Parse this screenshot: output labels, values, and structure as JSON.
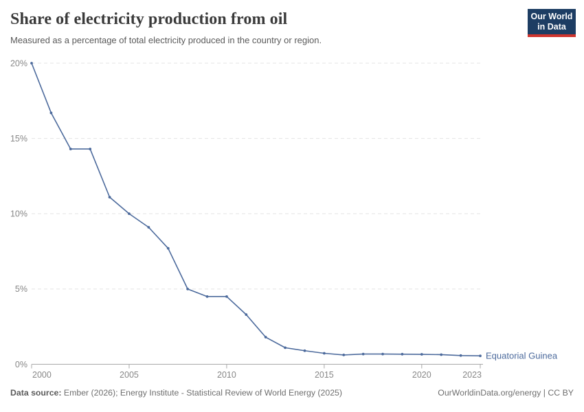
{
  "header": {
    "title": "Share of electricity production from oil",
    "subtitle": "Measured as a percentage of total electricity produced in the country or region.",
    "logo": {
      "line1": "Our World",
      "line2": "in Data"
    }
  },
  "chart_data": {
    "type": "line",
    "title": "Share of electricity production from oil",
    "xlabel": "",
    "ylabel": "",
    "x": [
      2000,
      2001,
      2002,
      2003,
      2004,
      2005,
      2006,
      2007,
      2008,
      2009,
      2010,
      2011,
      2012,
      2013,
      2014,
      2015,
      2016,
      2017,
      2018,
      2019,
      2020,
      2021,
      2022,
      2023
    ],
    "series": [
      {
        "name": "Equatorial Guinea",
        "values": [
          20.0,
          16.7,
          14.3,
          14.3,
          11.1,
          10.0,
          9.1,
          7.7,
          5.0,
          4.5,
          4.5,
          3.3,
          1.8,
          1.1,
          0.9,
          0.73,
          0.62,
          0.68,
          0.68,
          0.67,
          0.66,
          0.64,
          0.58,
          0.56
        ]
      }
    ],
    "entity_label": "Equatorial Guinea",
    "xlim": [
      2000,
      2023
    ],
    "ylim": [
      0,
      20
    ],
    "xticks": [
      {
        "value": 2000,
        "label": "2000"
      },
      {
        "value": 2005,
        "label": "2005"
      },
      {
        "value": 2010,
        "label": "2010"
      },
      {
        "value": 2015,
        "label": "2015"
      },
      {
        "value": 2020,
        "label": "2020"
      },
      {
        "value": 2023,
        "label": "2023"
      }
    ],
    "yticks": [
      {
        "value": 0,
        "label": "0%"
      },
      {
        "value": 5,
        "label": "5%"
      },
      {
        "value": 10,
        "label": "10%"
      },
      {
        "value": 15,
        "label": "15%"
      },
      {
        "value": 20,
        "label": "20%"
      }
    ],
    "grid": "horizontal-dashed",
    "legend_position": "right-of-line"
  },
  "footer": {
    "source_label": "Data source:",
    "source_text": " Ember (2026); Energy Institute - Statistical Review of World Energy (2025)",
    "credit": "OurWorldinData.org/energy | CC BY"
  },
  "colors": {
    "line": "#4C6A9C",
    "entity_label": "#4C6A9C",
    "grid": "#e3e3e3",
    "axis": "#a8a8a8",
    "tick_label": "#878787",
    "title": "#3a3a3a",
    "subtitle": "#595959",
    "logo_bg": "#1d3d63",
    "logo_accent": "#cf352e"
  }
}
